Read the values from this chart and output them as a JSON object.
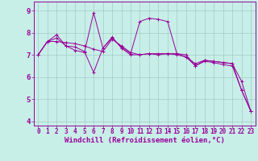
{
  "background_color": "#c8eee8",
  "line_color": "#990099",
  "grid_color": "#a0ccc8",
  "xlabel": "Windchill (Refroidissement éolien,°C)",
  "xlabel_fontsize": 6.5,
  "ytick_fontsize": 6.5,
  "xtick_fontsize": 5.5,
  "ylim": [
    3.8,
    9.4
  ],
  "xlim": [
    -0.5,
    23.5
  ],
  "yticks": [
    4,
    5,
    6,
    7,
    8,
    9
  ],
  "xticks": [
    0,
    1,
    2,
    3,
    4,
    5,
    6,
    7,
    8,
    9,
    10,
    11,
    12,
    13,
    14,
    15,
    16,
    17,
    18,
    19,
    20,
    21,
    22,
    23
  ],
  "series": [
    [
      7.0,
      7.6,
      7.6,
      7.55,
      7.5,
      7.4,
      7.25,
      7.15,
      7.7,
      7.4,
      7.1,
      7.0,
      7.05,
      7.05,
      7.05,
      7.05,
      6.9,
      6.6,
      6.75,
      6.7,
      6.65,
      6.6,
      5.4,
      4.45
    ],
    [
      7.0,
      7.6,
      7.9,
      7.4,
      7.2,
      7.1,
      8.9,
      7.3,
      7.75,
      7.35,
      7.05,
      8.5,
      8.65,
      8.6,
      8.5,
      7.05,
      7.0,
      6.5,
      6.75,
      6.7,
      6.65,
      6.6,
      5.8,
      4.45
    ],
    [
      7.0,
      7.6,
      7.75,
      7.4,
      7.35,
      7.15,
      6.2,
      7.3,
      7.8,
      7.3,
      7.0,
      7.0,
      7.05,
      7.0,
      7.05,
      7.0,
      6.9,
      6.5,
      6.7,
      6.65,
      6.55,
      6.5,
      5.4,
      4.45
    ]
  ]
}
